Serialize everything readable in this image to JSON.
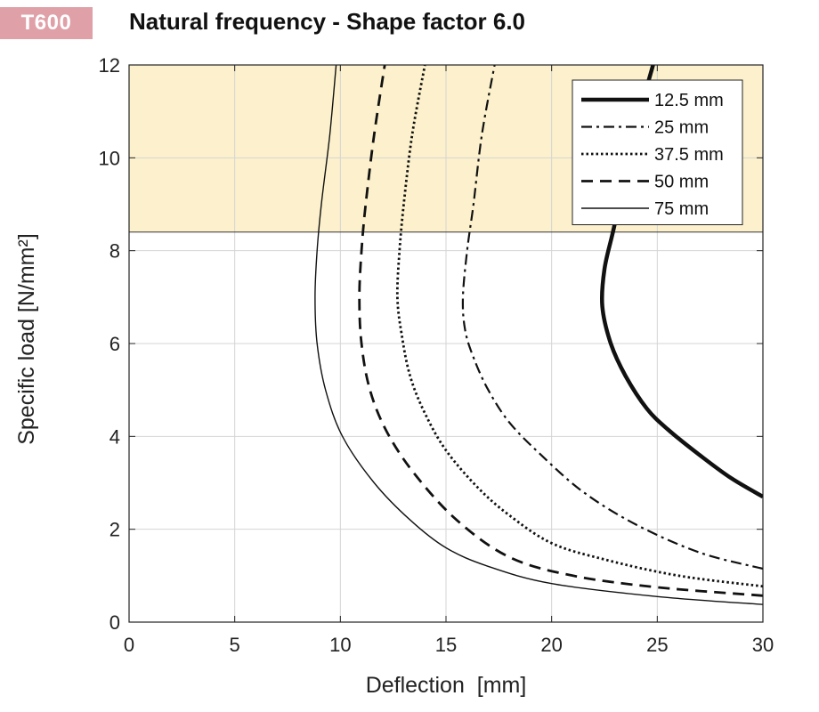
{
  "header": {
    "badge": "T600",
    "title": "Natural frequency - Shape factor 6.0"
  },
  "colors": {
    "badge": "#dfa0a8",
    "highlight": "#fcf1cc",
    "line": "#111111",
    "grid": "#d4d4d4"
  },
  "chart_data": {
    "type": "line",
    "title": "Natural frequency - Shape factor 6.0",
    "xlabel": "Deflection  [mm]",
    "ylabel": "Specific load [N/mm²]",
    "xlim": [
      0,
      30
    ],
    "ylim": [
      0,
      12
    ],
    "xticks": [
      0,
      5,
      10,
      15,
      20,
      25,
      30
    ],
    "yticks": [
      0,
      2,
      4,
      6,
      8,
      10,
      12
    ],
    "grid": true,
    "legend_position": "top-right",
    "shaded_region": {
      "y_from": 8.4,
      "y_to": 12,
      "color": "#fcf1cc"
    },
    "series": [
      {
        "name": "12.5 mm",
        "style": "solid-thick",
        "points": [
          [
            30,
            2.7
          ],
          [
            28.5,
            3.1
          ],
          [
            27,
            3.6
          ],
          [
            25.5,
            4.15
          ],
          [
            24.5,
            4.6
          ],
          [
            23.5,
            5.3
          ],
          [
            22.8,
            6.0
          ],
          [
            22.4,
            6.8
          ],
          [
            22.5,
            7.6
          ],
          [
            22.9,
            8.4
          ],
          [
            23.5,
            9.6
          ],
          [
            24.2,
            11
          ],
          [
            24.8,
            12
          ]
        ]
      },
      {
        "name": "25 mm",
        "style": "dashdot",
        "points": [
          [
            30,
            1.15
          ],
          [
            27,
            1.5
          ],
          [
            24,
            2.1
          ],
          [
            21.5,
            2.8
          ],
          [
            19.5,
            3.6
          ],
          [
            18,
            4.3
          ],
          [
            17,
            5.0
          ],
          [
            16.3,
            5.7
          ],
          [
            15.9,
            6.3
          ],
          [
            15.8,
            7.0
          ],
          [
            16.0,
            8.0
          ],
          [
            16.3,
            9.0
          ],
          [
            16.7,
            10.5
          ],
          [
            17.3,
            12
          ]
        ]
      },
      {
        "name": "37.5 mm",
        "style": "dotted",
        "points": [
          [
            30,
            0.77
          ],
          [
            26,
            1.0
          ],
          [
            22.5,
            1.35
          ],
          [
            20,
            1.7
          ],
          [
            18,
            2.3
          ],
          [
            16.5,
            2.9
          ],
          [
            15,
            3.7
          ],
          [
            14,
            4.5
          ],
          [
            13.3,
            5.3
          ],
          [
            12.9,
            6.2
          ],
          [
            12.7,
            7.0
          ],
          [
            12.8,
            8.0
          ],
          [
            13.0,
            9.0
          ],
          [
            13.4,
            10.5
          ],
          [
            14.0,
            12
          ]
        ]
      },
      {
        "name": "50 mm",
        "style": "dashed",
        "points": [
          [
            30,
            0.57
          ],
          [
            25,
            0.75
          ],
          [
            21,
            1.0
          ],
          [
            18,
            1.4
          ],
          [
            15.5,
            2.2
          ],
          [
            13.5,
            3.2
          ],
          [
            12.2,
            4.1
          ],
          [
            11.4,
            5.0
          ],
          [
            11.0,
            6.0
          ],
          [
            10.9,
            7.0
          ],
          [
            11.0,
            8.0
          ],
          [
            11.2,
            9.0
          ],
          [
            11.6,
            10.5
          ],
          [
            12.1,
            12
          ]
        ]
      },
      {
        "name": "75 mm",
        "style": "solid-thin",
        "points": [
          [
            30,
            0.38
          ],
          [
            25,
            0.55
          ],
          [
            20,
            0.83
          ],
          [
            17,
            1.2
          ],
          [
            15,
            1.6
          ],
          [
            13.3,
            2.2
          ],
          [
            11.6,
            3.0
          ],
          [
            10.1,
            4.0
          ],
          [
            9.3,
            5.0
          ],
          [
            8.9,
            6.0
          ],
          [
            8.8,
            7.0
          ],
          [
            8.9,
            8.0
          ],
          [
            9.1,
            9.0
          ],
          [
            9.5,
            10.5
          ],
          [
            9.8,
            12
          ]
        ]
      }
    ]
  }
}
